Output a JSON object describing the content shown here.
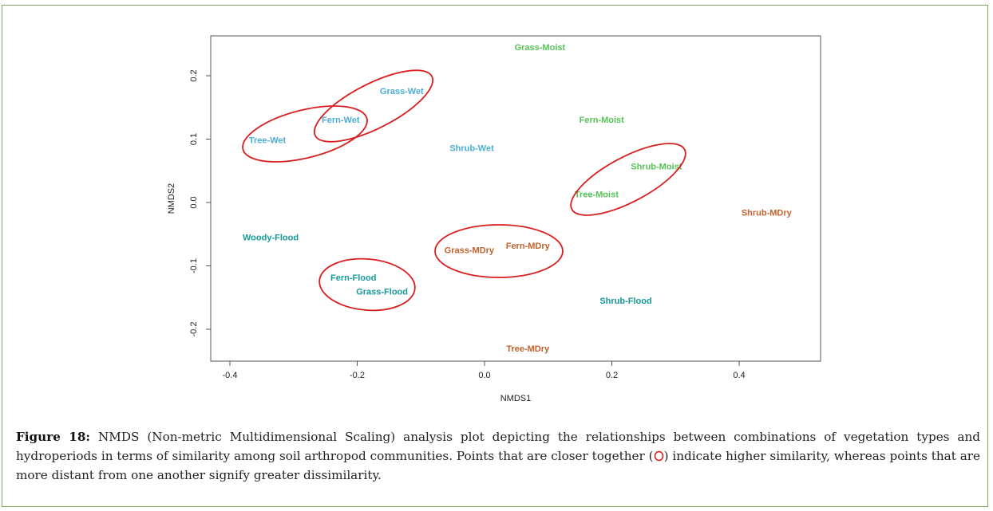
{
  "chart_data": {
    "type": "scatter",
    "title": "",
    "xlabel": "NMDS1",
    "ylabel": "NMDS2",
    "xlim": [
      -0.43,
      0.53
    ],
    "ylim": [
      -0.25,
      0.26
    ],
    "xticks": [
      "-0.4",
      "-0.2",
      "0.0",
      "0.2",
      "0.4"
    ],
    "xtick_values": [
      -0.4,
      -0.2,
      0.0,
      0.2,
      0.4
    ],
    "yticks": [
      "-0.2",
      "-0.1",
      "0.0",
      "0.1",
      "0.2"
    ],
    "ytick_values": [
      -0.2,
      -0.1,
      0.0,
      0.1,
      0.2
    ],
    "grid": false,
    "colors": {
      "Wet": "#4aaed6",
      "Moist": "#55c455",
      "MDry": "#c2612b",
      "Flood": "#17999a",
      "ellipse": "#d81e1e"
    },
    "points": [
      {
        "label": "Grass-Moist",
        "x": 0.087,
        "y": 0.245,
        "group": "Moist"
      },
      {
        "label": "Grass-Wet",
        "x": -0.13,
        "y": 0.176,
        "group": "Wet"
      },
      {
        "label": "Fern-Wet",
        "x": -0.226,
        "y": 0.131,
        "group": "Wet"
      },
      {
        "label": "Tree-Wet",
        "x": -0.341,
        "y": 0.099,
        "group": "Wet"
      },
      {
        "label": "Shrub-Wet",
        "x": -0.02,
        "y": 0.086,
        "group": "Wet"
      },
      {
        "label": "Fern-Moist",
        "x": 0.184,
        "y": 0.131,
        "group": "Moist"
      },
      {
        "label": "Shrub-Moist",
        "x": 0.27,
        "y": 0.057,
        "group": "Moist"
      },
      {
        "label": "Tree-Moist",
        "x": 0.176,
        "y": 0.013,
        "group": "Moist"
      },
      {
        "label": "Shrub-MDry",
        "x": 0.443,
        "y": -0.016,
        "group": "MDry"
      },
      {
        "label": "Woody-Flood",
        "x": -0.336,
        "y": -0.055,
        "group": "Flood"
      },
      {
        "label": "Grass-MDry",
        "x": -0.024,
        "y": -0.075,
        "group": "MDry"
      },
      {
        "label": "Fern-MDry",
        "x": 0.068,
        "y": -0.068,
        "group": "MDry"
      },
      {
        "label": "Fern-Flood",
        "x": -0.206,
        "y": -0.118,
        "group": "Flood"
      },
      {
        "label": "Grass-Flood",
        "x": -0.161,
        "y": -0.14,
        "group": "Flood"
      },
      {
        "label": "Shrub-Flood",
        "x": 0.222,
        "y": -0.155,
        "group": "Flood"
      },
      {
        "label": "Tree-MDry",
        "x": 0.068,
        "y": -0.23,
        "group": "MDry"
      }
    ],
    "similarity_clusters": [
      [
        "Tree-Wet",
        "Fern-Wet"
      ],
      [
        "Fern-Wet",
        "Grass-Wet"
      ],
      [
        "Tree-Moist",
        "Shrub-Moist"
      ],
      [
        "Grass-MDry",
        "Fern-MDry"
      ],
      [
        "Fern-Flood",
        "Grass-Flood"
      ]
    ]
  },
  "caption": {
    "label": "Figure 18:",
    "text_before_symbol": " NMDS (Non-metric Multidimensional Scaling) analysis plot depicting the relationships between combinations of vegetation types and hydroperiods in terms of similarity among soil arthropod communities. Points that are closer together (",
    "text_after_symbol": ") indicate higher similarity, whereas points that are more distant from one another signify greater dissimilarity."
  }
}
